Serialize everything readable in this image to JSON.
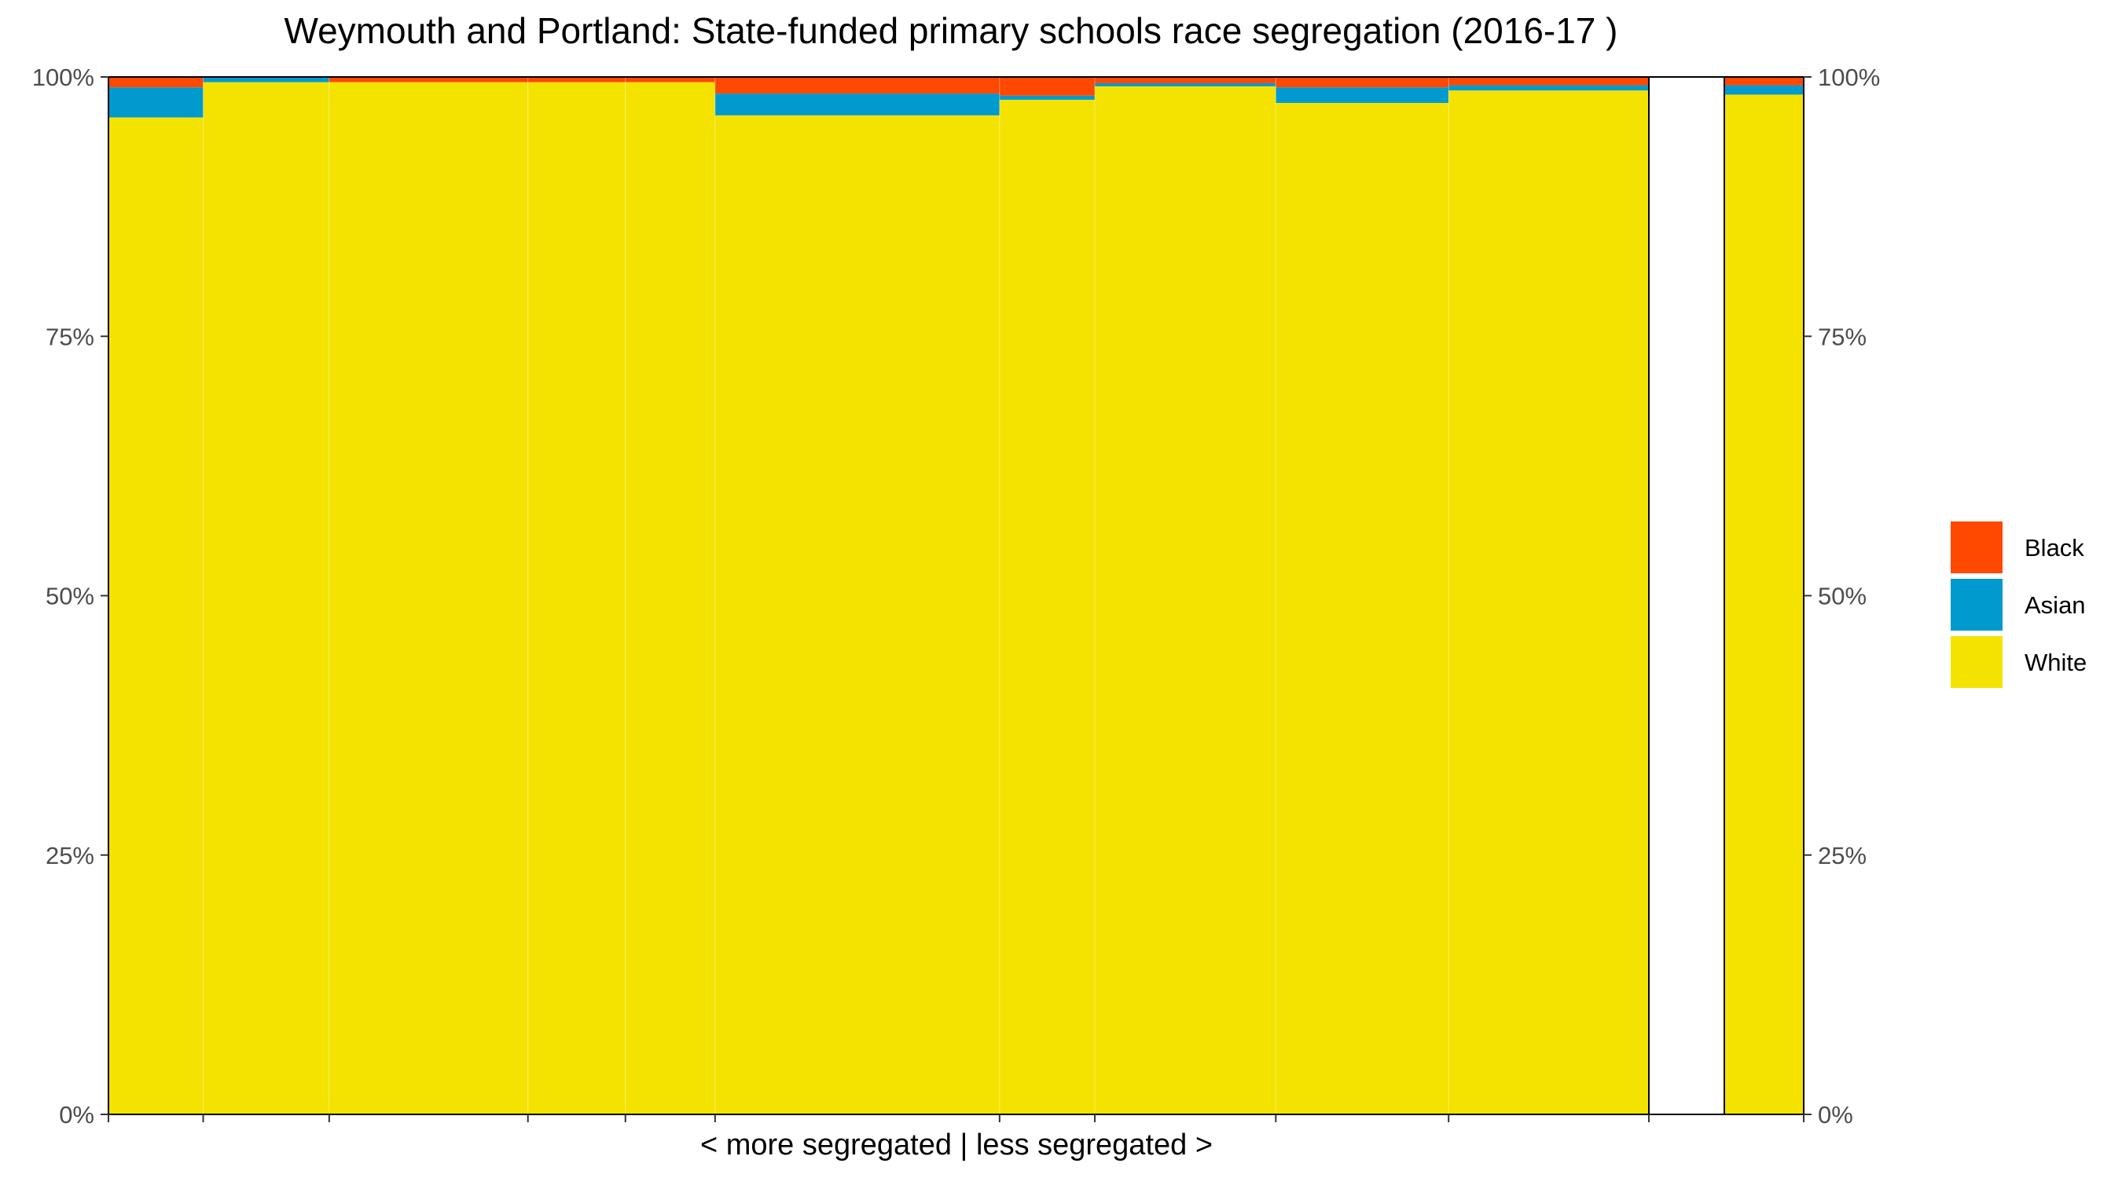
{
  "chart_data": {
    "type": "bar",
    "subtype": "stacked-marimekko",
    "title": "Weymouth and Portland: State-funded primary schools race segregation (2016-17 )",
    "xlabel": "< more segregated | less segregated >",
    "ylabel": "",
    "ylim": [
      0,
      1
    ],
    "y_ticks": [
      0,
      0.25,
      0.5,
      0.75,
      1
    ],
    "y_tick_labels": [
      "0%",
      "25%",
      "50%",
      "75%",
      "100%"
    ],
    "y_axis_sides": [
      "left",
      "right"
    ],
    "grid": false,
    "legend_position": "right",
    "series": [
      {
        "name": "White",
        "color": "#F4E300"
      },
      {
        "name": "Asian",
        "color": "#009ACF"
      },
      {
        "name": "Black",
        "color": "#FF4800"
      }
    ],
    "legend_order": [
      "Black",
      "Asian",
      "White"
    ],
    "schools": [
      {
        "width": 0.0615,
        "White": 0.961,
        "Asian": 0.029,
        "Black": 0.01
      },
      {
        "width": 0.0818,
        "White": 0.995,
        "Asian": 0.005,
        "Black": 0.0
      },
      {
        "width": 0.129,
        "White": 0.995,
        "Asian": 0.0,
        "Black": 0.005
      },
      {
        "width": 0.0633,
        "White": 0.995,
        "Asian": 0.0,
        "Black": 0.005
      },
      {
        "width": 0.0582,
        "White": 0.995,
        "Asian": 0.0,
        "Black": 0.005
      },
      {
        "width": 0.1847,
        "White": 0.963,
        "Asian": 0.021,
        "Black": 0.016
      },
      {
        "width": 0.0618,
        "White": 0.978,
        "Asian": 0.004,
        "Black": 0.018
      },
      {
        "width": 0.1175,
        "White": 0.991,
        "Asian": 0.003,
        "Black": 0.006
      },
      {
        "width": 0.1122,
        "White": 0.975,
        "Asian": 0.015,
        "Black": 0.01
      },
      {
        "width": 0.13,
        "White": 0.987,
        "Asian": 0.005,
        "Black": 0.008
      }
    ],
    "overall": {
      "White": 0.983,
      "Asian": 0.009,
      "Black": 0.008
    }
  }
}
